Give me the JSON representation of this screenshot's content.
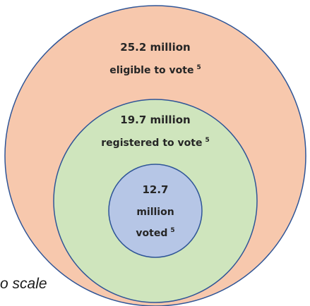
{
  "colors": {
    "outer_fill": "#f7c8ad",
    "middle_fill": "#cfe5bd",
    "inner_fill": "#b6c6e6",
    "stroke": "#2f5597"
  },
  "rings": {
    "outer": {
      "line1": "25.2 million",
      "line2": "eligible to vote",
      "footnote": "5"
    },
    "middle": {
      "line1": "19.7 million",
      "line2": "registered to vote",
      "footnote": "5"
    },
    "inner": {
      "line1": "12.7",
      "line2": "million",
      "line3": "voted",
      "footnote": "5"
    }
  },
  "note": "o scale"
}
